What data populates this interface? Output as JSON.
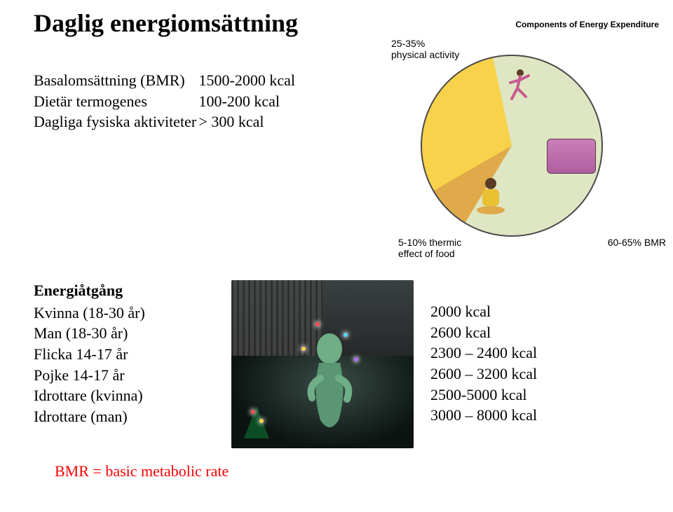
{
  "title": "Daglig energiomsättning",
  "bmr": {
    "rows": [
      {
        "label": "Basalomsättning (BMR)",
        "value": "1500-2000 kcal"
      },
      {
        "label": "Dietär termogenes",
        "value": "100-200    kcal"
      },
      {
        "label": "Dagliga fysiska aktiviteter",
        "value": "> 300        kcal"
      }
    ]
  },
  "energy": {
    "heading": "Energiåtgång",
    "rows": [
      {
        "label": "Kvinna (18-30 år)",
        "value": "2000 kcal"
      },
      {
        "label": "Man (18-30 år)",
        "value": "2600 kcal"
      },
      {
        "label": "Flicka 14-17 år",
        "value": "2300 – 2400 kcal"
      },
      {
        "label": "Pojke 14-17 år",
        "value": "2600 – 3200 kcal"
      },
      {
        "label": "Idrottare (kvinna)",
        "value": "2500-5000 kcal"
      },
      {
        "label": "Idrottare (man)",
        "value": "3000 – 8000 kcal"
      }
    ]
  },
  "footnote": "BMR = basic metabolic rate",
  "pie": {
    "caption": "Components of Energy Expenditure",
    "slices": [
      {
        "id": "activity",
        "label": "25-35%\nphysical activity",
        "fraction": 0.3,
        "color": "#f8d24a"
      },
      {
        "id": "bmr",
        "label": "60-65% BMR",
        "fraction": 0.62,
        "color": "#dfe6c3"
      },
      {
        "id": "thermic",
        "label": "5-10% thermic\neffect of food",
        "fraction": 0.08,
        "color": "#e0a94a"
      }
    ],
    "border_color": "#4a4a4a",
    "background_color": "#ffffff",
    "label_font_family": "Arial",
    "label_fontsize": 14
  },
  "artwork": {
    "description": "dark forest scene with seated luminous figure and small christmas tree",
    "bg_gradient": [
      "#3a4040",
      "#0c0c0c"
    ],
    "figure_color": "#6fae86",
    "sparkle_colors": [
      "#ff4d4d",
      "#ffd24d",
      "#57d3ff",
      "#b06dff"
    ],
    "tree_color": "#0d4d25"
  },
  "colors": {
    "text": "#000000",
    "footnote": "#ff0000",
    "background": "#ffffff"
  },
  "fonts": {
    "body_family": "Times New Roman",
    "title_size_pt": 27,
    "body_size_pt": 16
  }
}
